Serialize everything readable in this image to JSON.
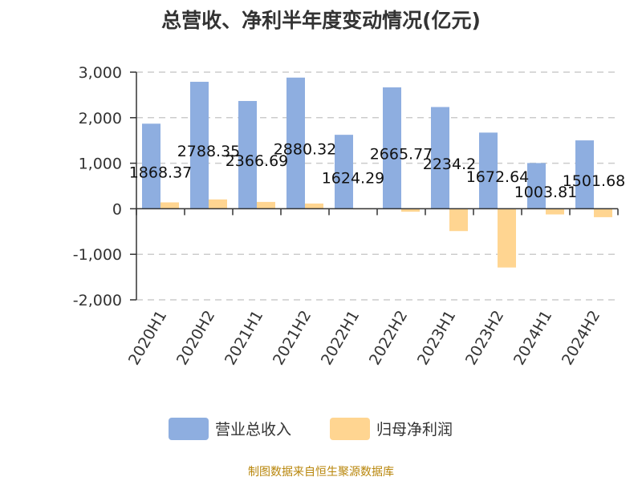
{
  "chart_data": {
    "type": "bar",
    "title": "总营收、净利半年度变动情况(亿元)",
    "categories": [
      "2020H1",
      "2020H2",
      "2021H1",
      "2021H2",
      "2022H1",
      "2022H2",
      "2023H1",
      "2023H2",
      "2024H1",
      "2024H2"
    ],
    "series": [
      {
        "name": "营业总收入",
        "color": "#8eaee0",
        "values": [
          1868.37,
          2788.35,
          2366.69,
          2880.32,
          1624.29,
          2665.77,
          2234.2,
          1672.64,
          1003.81,
          1501.68
        ],
        "labels": [
          "1868.37",
          "2788.35",
          "2366.69",
          "2880.32",
          "1624.29",
          "2665.77",
          "2234.2",
          "1672.64",
          "1003.81",
          "1501.68"
        ]
      },
      {
        "name": "归母净利润",
        "color": "#ffd591",
        "values": [
          140,
          205,
          150,
          115,
          5,
          -65,
          -490,
          -1290,
          -125,
          -185
        ]
      }
    ],
    "y_ticks": [
      "3,000",
      "2,000",
      "1,000",
      "0",
      "-1,000",
      "-2,000"
    ],
    "ylim": [
      -2000,
      3000
    ],
    "grid": true,
    "legend_position": "bottom"
  },
  "source": "制图数据来自恒生聚源数据库"
}
